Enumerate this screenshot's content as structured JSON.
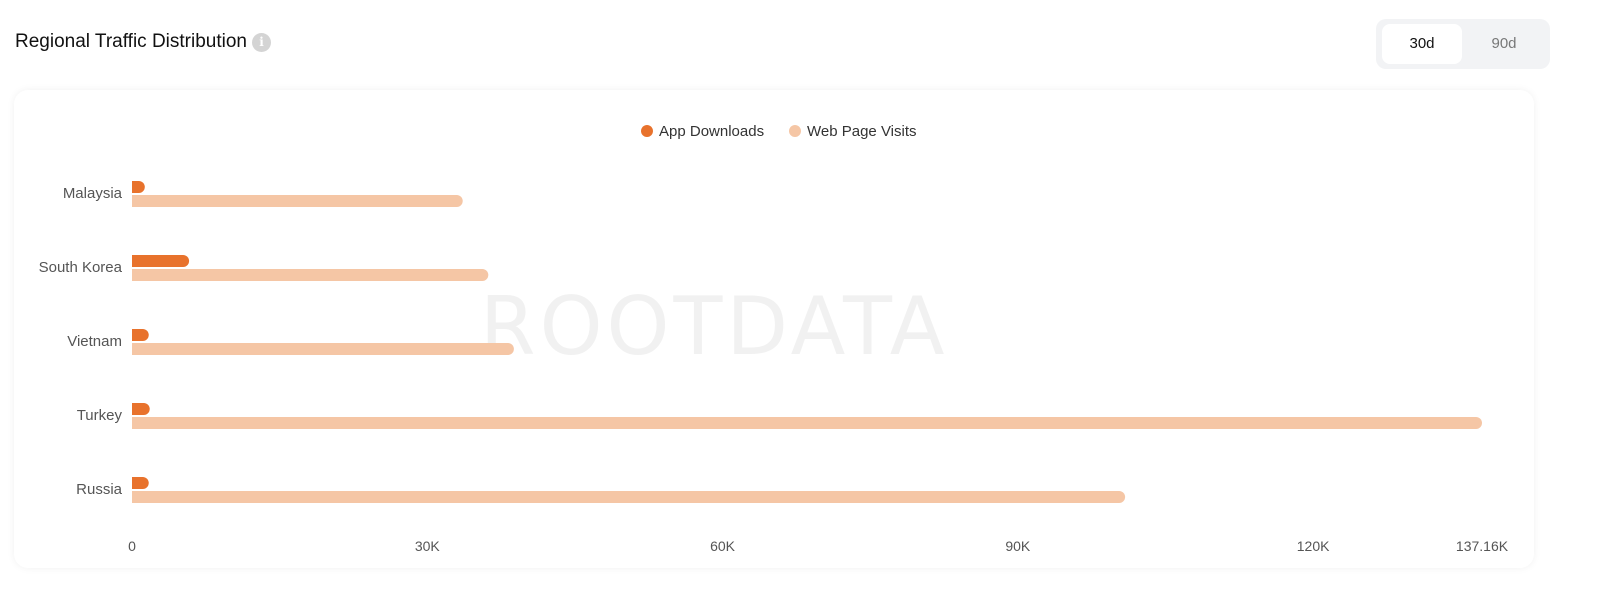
{
  "header": {
    "title": "Regional Traffic Distribution",
    "info_icon": "info-icon"
  },
  "range_toggle": {
    "options": [
      "30d",
      "90d"
    ],
    "selected": "30d"
  },
  "watermark": "ROOTDATA",
  "chart_data": {
    "type": "bar",
    "orientation": "horizontal",
    "categories": [
      "Malaysia",
      "South Korea",
      "Vietnam",
      "Turkey",
      "Russia"
    ],
    "series": [
      {
        "name": "App Downloads",
        "color": "#e8722c",
        "values": [
          1300,
          5800,
          1700,
          1800,
          1700
        ]
      },
      {
        "name": "Web Page Visits",
        "color": "#f5c6a5",
        "values": [
          33600,
          36200,
          38800,
          137160,
          100900
        ]
      }
    ],
    "x_ticks": [
      "0",
      "30K",
      "60K",
      "90K",
      "120K",
      "137.16K"
    ],
    "xlim": [
      0,
      137160
    ],
    "legend": "top-center",
    "grid": false
  }
}
